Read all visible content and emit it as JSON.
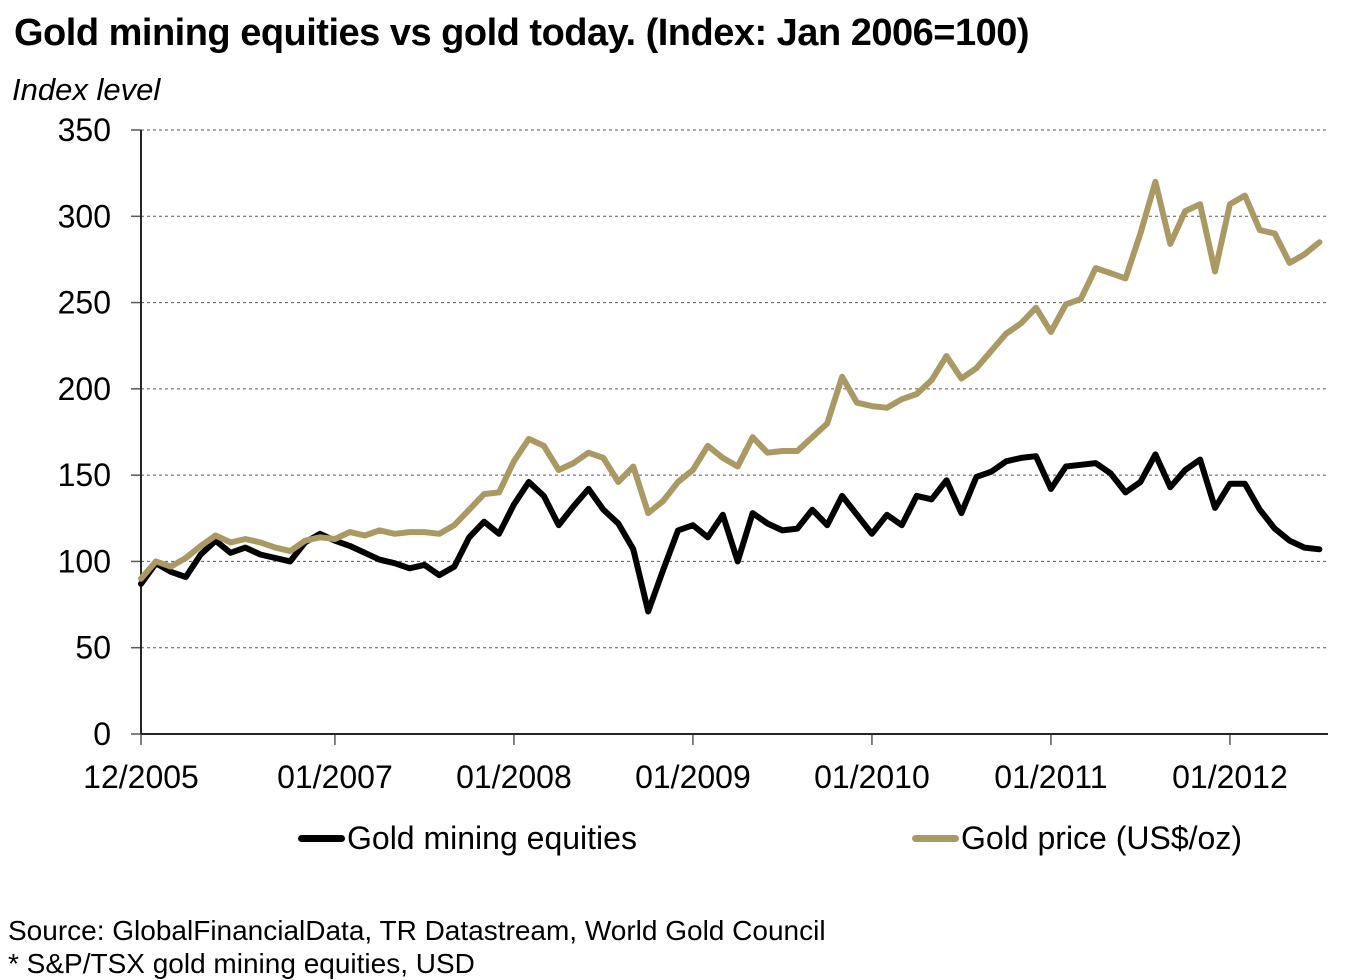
{
  "title": "Gold mining equities vs gold today. (Index: Jan 2006=100)",
  "y_axis_label": "Index level",
  "source": {
    "line1": "Source: GlobalFinancialData, TR Datastream, World Gold Council",
    "line2": "* S&P/TSX gold mining equities, USD"
  },
  "chart_data": {
    "type": "line",
    "title": "Gold mining equities vs gold today. (Index: Jan 2006=100)",
    "ylabel": "Index level",
    "xlabel": "",
    "ylim": [
      0,
      350
    ],
    "y_ticks": [
      0,
      50,
      100,
      150,
      200,
      250,
      300,
      350
    ],
    "grid": "horizontal-dashed",
    "legend_position": "bottom",
    "x_frequency": "monthly",
    "x_start": "12/2005",
    "x_end": "07/2012",
    "x_tick_labels": [
      "12/2005",
      "01/2007",
      "01/2008",
      "01/2009",
      "01/2010",
      "01/2011",
      "01/2012"
    ],
    "x_tick_month_indices": [
      0,
      13,
      25,
      37,
      49,
      61,
      73
    ],
    "series": [
      {
        "name": "Gold mining equities",
        "color": "#000000",
        "values": [
          87,
          99,
          94,
          91,
          104,
          112,
          105,
          108,
          104,
          102,
          100,
          111,
          116,
          112,
          109,
          105,
          101,
          99,
          96,
          98,
          92,
          97,
          114,
          123,
          116,
          133,
          146,
          138,
          121,
          132,
          142,
          130,
          122,
          107,
          71,
          95,
          118,
          121,
          114,
          127,
          100,
          128,
          122,
          118,
          119,
          130,
          121,
          138,
          127,
          116,
          127,
          121,
          138,
          136,
          147,
          128,
          149,
          152,
          158,
          160,
          161,
          142,
          155,
          156,
          157,
          151,
          140,
          146,
          162,
          143,
          153,
          159,
          131,
          145,
          145,
          130,
          119,
          112,
          108,
          107
        ]
      },
      {
        "name": "Gold price (US$/oz)",
        "color": "#ab9964",
        "values": [
          90,
          100,
          97,
          102,
          109,
          115,
          111,
          113,
          111,
          108,
          106,
          112,
          114,
          113,
          117,
          115,
          118,
          116,
          117,
          117,
          116,
          121,
          130,
          139,
          140,
          158,
          171,
          167,
          153,
          157,
          163,
          160,
          146,
          155,
          128,
          135,
          146,
          153,
          167,
          160,
          155,
          172,
          163,
          164,
          164,
          172,
          180,
          207,
          192,
          190,
          189,
          194,
          197,
          205,
          219,
          206,
          212,
          222,
          232,
          238,
          247,
          233,
          249,
          252,
          270,
          267,
          264,
          290,
          320,
          284,
          303,
          307,
          268,
          307,
          312,
          292,
          290,
          273,
          278,
          285
        ]
      }
    ]
  }
}
